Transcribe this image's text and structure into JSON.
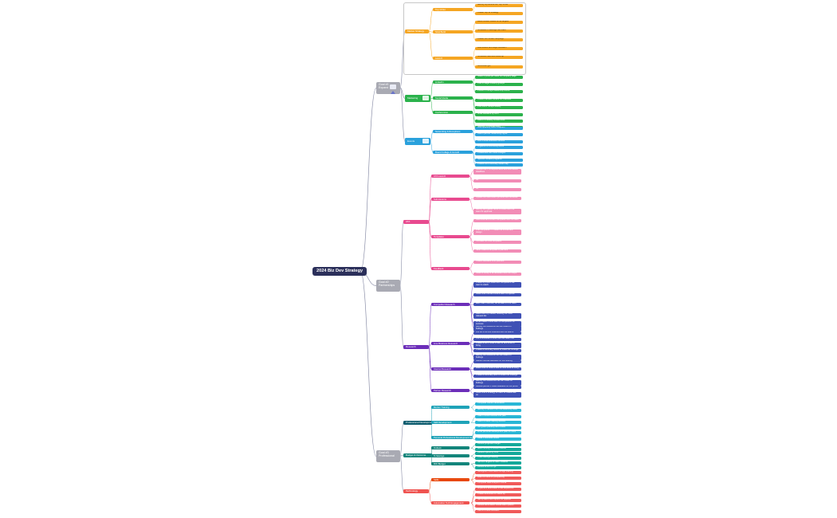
{
  "title": "2024 Biz Dev Strategy",
  "colors": {
    "root": "#2b2f5a",
    "goal": "#a9aab3",
    "line": "#8b8fa8",
    "orange": "#f5a623",
    "green": "#2bb24c",
    "blue": "#2aa1dc",
    "pink": "#e84a8f",
    "purple": "#6c2eb9",
    "indigo": "#3f51b5",
    "teal": "#1fa3b8",
    "red": "#ef5350"
  },
  "goals": [
    {
      "label": "Goal #1\nExpand",
      "icon": "rocket-icon"
    },
    {
      "label": "Goal #2\nPartnerships"
    },
    {
      "label": "Goal #3\nProfessional"
    }
  ],
  "g1_sections": [
    {
      "label": "Market Strategy",
      "icon": ""
    },
    {
      "label": "Marketing",
      "icon": "monitor-icon"
    },
    {
      "label": "Events",
      "icon": "people-icon"
    }
  ],
  "g1_subs": [
    {
      "label": "Top 10 list"
    },
    {
      "label": "Strat Build"
    },
    {
      "label": "Launch"
    },
    {
      "label": "LinkedIn"
    },
    {
      "label": "Social Media"
    },
    {
      "label": "Conferences"
    },
    {
      "label": "Networking & Receptions"
    },
    {
      "label": "Board Collage & Growth"
    }
  ],
  "g1_leaves": [
    "Identify & prioritize our Top 10 list",
    "Create Top 10 strategy",
    "Build contact sheets for all targets",
    "Schedule 2 meetings with each",
    "Create 1st contact campaign",
    "Host kickoff and begin outreach",
    "Schedule calls and follow-up",
    "Go-to-Dec-gift",
    "Share 2 posts per week on company page",
    "Post in target industry groups",
    "Publish 1 thought leadership article",
    "Create branded content for channels",
    "Post event recaps weekly",
    "Grow followers by 20%",
    "Attend 4 industry conferences",
    "Sponsor 1 regional event",
    "Host quarterly client reception",
    "Attend partner networking nights",
    "Join 2 local business councils",
    "Organize a community event",
    "Collaborate with local colleges",
    "Sponsor student programs",
    "Present at a university career day"
  ],
  "g2_sections": [
    {
      "label": "ATA"
    },
    {
      "label": "Research"
    }
  ],
  "g2_subs": [
    {
      "label": "CTA Launch"
    },
    {
      "label": "Submissions"
    },
    {
      "label": "Templates"
    },
    {
      "label": "Feedback"
    },
    {
      "label": "Competitor Research"
    },
    {
      "label": "Line Business Research"
    },
    {
      "label": "Internal Research"
    },
    {
      "label": "Partner Research"
    }
  ],
  "g2_leaves": [
    "Review the CTA requirements and submission deadlines",
    "All",
    "All",
    "Update the submission process and schedule",
    "Identify and gather items to share with the team for approval",
    "Reconcile and confirm templates with the team",
    "Draft templates — create the format and design",
    "Circulate the final templates",
    "Send finalized template to partners",
    "Collect feedback from partners",
    "Share a recap of all feedback and next steps",
    "Create a profile sheet with competitors we want to watch",
    "Determine how and where each competes",
    "Each team member, list at least 2-3 for each",
    "Rank them by market, building the most relevant list",
    "What makes it sure each is competitive for success",
    "Identify the difference we can share on findings",
    "Full list of all line business and the teams",
    "Pull a schedule of when we can reach out",
    "Create a list of what to ask for and what to bring",
    "Create a summary series to share our findings",
    "Identify the difference we can share on findings",
    "Gather internal feedback on the offering",
    "Make a list of what to ask for and what to bring",
    "Create a summary point to share our findings",
    "Identify the differences we can share on findings",
    "Review partner's notes available on the portal",
    "Determine a strategy for each to collaborate on"
  ],
  "g3_sections": [
    {
      "label": "Professional Development"
    },
    {
      "label": "Budget & Outcome"
    },
    {
      "label": "Technology"
    }
  ],
  "g3_subs": [
    {
      "label": "Mentor Training"
    },
    {
      "label": "Skill Development"
    },
    {
      "label": "Personal Professional Development Goals"
    },
    {
      "label": "Outlook"
    },
    {
      "label": "% Savings"
    },
    {
      "label": "ROI Budget"
    },
    {
      "label": "Skills"
    },
    {
      "label": "Automation Tech Engagement"
    }
  ],
  "g3_leaves": [
    "Complete mentor certification",
    "Identify 2 mentors from the leadership team",
    "Take 2 online courses this year",
    "Attend a sales training session",
    "Set goals quarterly and review",
    "Write personal development plan for 2024",
    "Read 6 business books",
    "Review projected budget",
    "Meet monthly to review outlook",
    "Reduce spend by 10%",
    "Track savings monthly",
    "Set ROI targets for each initiative",
    "Review at end of Q2",
    "Strengthen CRM skills through training",
    "Learn AI tools for prospecting",
    "Complete data analytics course",
    "Implement automated email sequences",
    "Create workflows for follow up",
    "Set up alerts and reports for pipeline",
    "Review automation results each quarter",
    "Use AI to draft outreach"
  ]
}
